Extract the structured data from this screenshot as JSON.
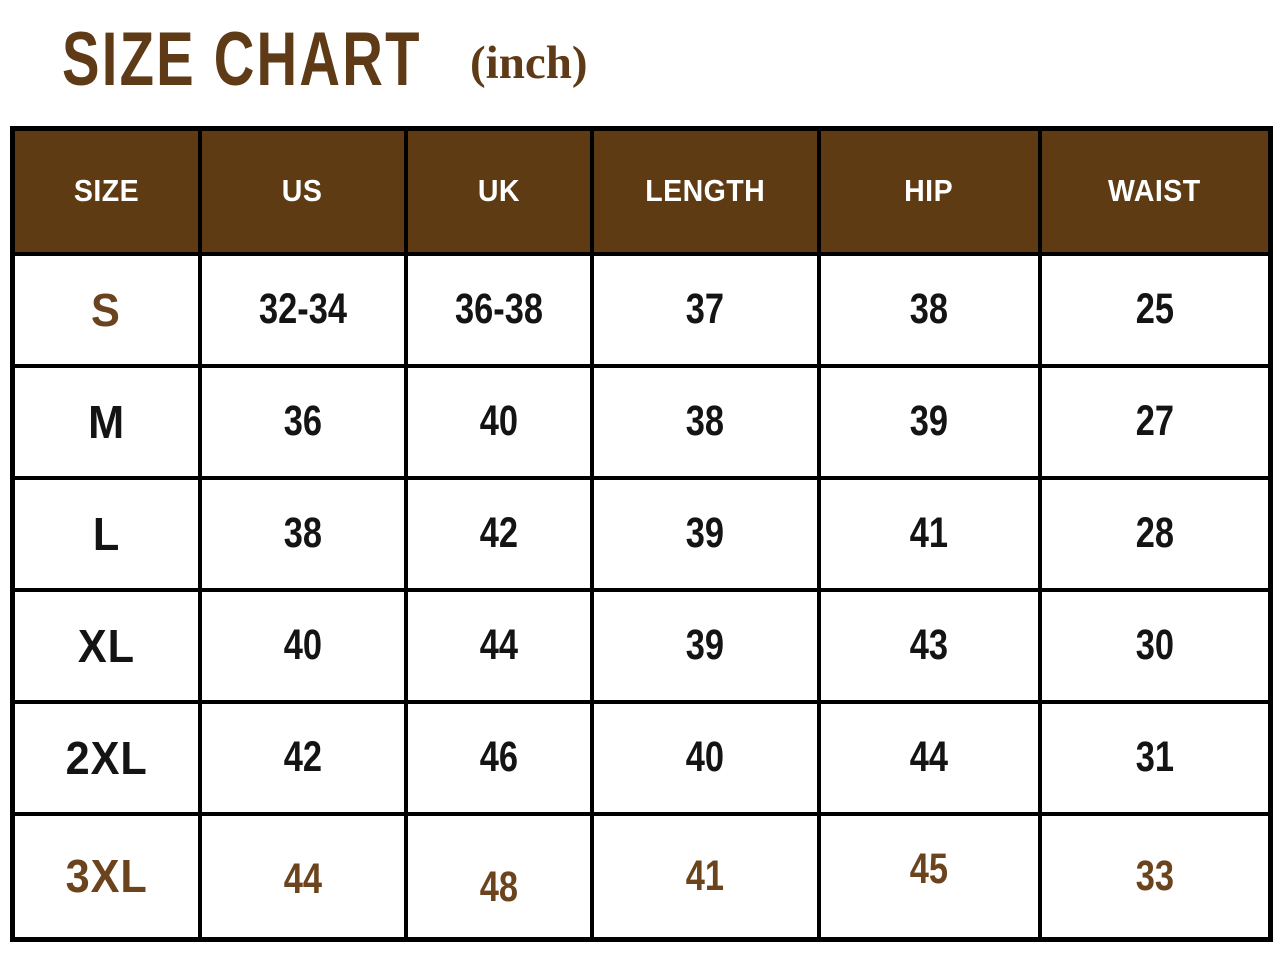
{
  "title": {
    "main": "SIZE CHART",
    "unit": "(inch)"
  },
  "colors": {
    "title_brown": "#5E3A16",
    "header_background": "#5E3B13",
    "header_text": "#FFFFFF",
    "accent_brown": "#6B431C",
    "cell_text": "#141414",
    "border": "#000000",
    "page_background": "#FFFFFF"
  },
  "chart_data": {
    "type": "table",
    "title": "SIZE CHART",
    "unit_label": "(inch)",
    "columns": [
      "SIZE",
      "US",
      "UK",
      "LENGTH",
      "HIP",
      "WAIST"
    ],
    "rows": [
      {
        "cells": [
          "S",
          "32-34",
          "36-38",
          "37",
          "38",
          "25"
        ],
        "style": "label-accent"
      },
      {
        "cells": [
          "M",
          "36",
          "40",
          "38",
          "39",
          "27"
        ],
        "style": "normal"
      },
      {
        "cells": [
          "L",
          "38",
          "42",
          "39",
          "41",
          "28"
        ],
        "style": "normal"
      },
      {
        "cells": [
          "XL",
          "40",
          "44",
          "39",
          "43",
          "30"
        ],
        "style": "normal"
      },
      {
        "cells": [
          "2XL",
          "42",
          "46",
          "40",
          "44",
          "31"
        ],
        "style": "normal"
      },
      {
        "cells": [
          "3XL",
          "44",
          "48",
          "41",
          "45",
          "33"
        ],
        "style": "accent"
      }
    ]
  }
}
